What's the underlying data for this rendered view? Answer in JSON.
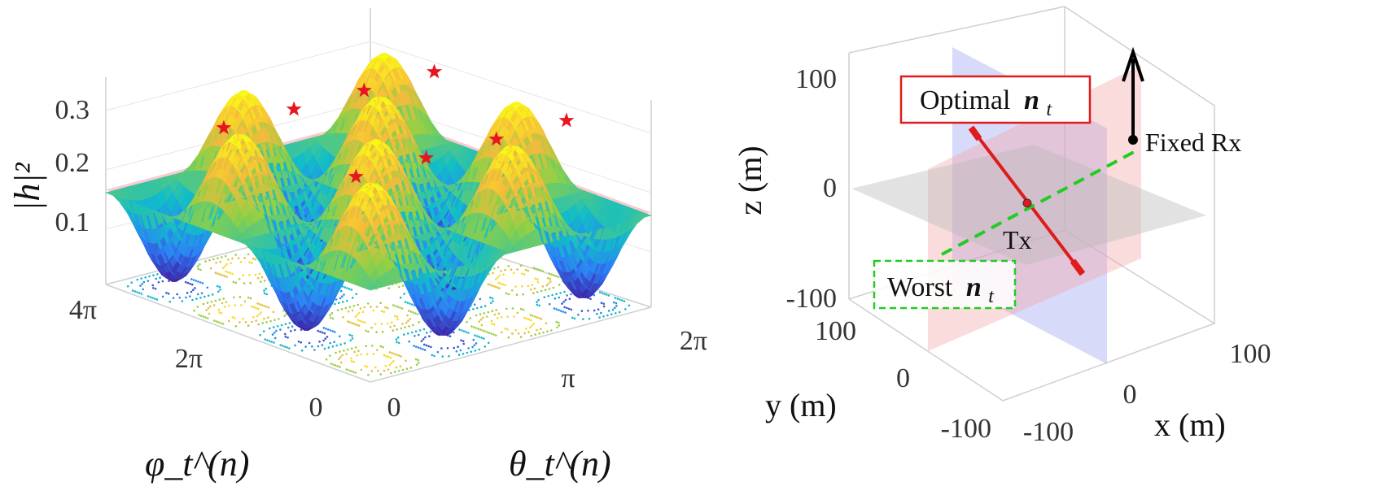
{
  "chart_data": [
    {
      "type": "surface",
      "zlabel": "|h|²",
      "xlabel": "θ_t^(n)",
      "ylabel": "φ_t^(n)",
      "x_ticks": [
        "0",
        "π",
        "2π"
      ],
      "y_ticks": [
        "0",
        "2π",
        "4π"
      ],
      "z_ticks": [
        "0.1",
        "0.2",
        "0.3"
      ],
      "xlim": [
        0,
        6.283
      ],
      "ylim": [
        0,
        12.566
      ],
      "zlim": [
        0,
        0.35
      ],
      "contour_projection": true,
      "threshold_plane_z": 0.16,
      "colormap": [
        "#3e26a8",
        "#2e7ef7",
        "#11bec7",
        "#8ed046",
        "#f6ba3c",
        "#f9fb15"
      ],
      "maxima": [
        {
          "theta": 0.79,
          "phi": 2.36,
          "value": 0.3
        },
        {
          "theta": 2.36,
          "phi": 2.36,
          "value": 0.3
        },
        {
          "theta": 3.93,
          "phi": 2.36,
          "value": 0.3
        },
        {
          "theta": 5.5,
          "phi": 2.36,
          "value": 0.3
        },
        {
          "theta": 0.79,
          "phi": 8.64,
          "value": 0.3
        },
        {
          "theta": 2.36,
          "phi": 8.64,
          "value": 0.3
        },
        {
          "theta": 3.93,
          "phi": 8.64,
          "value": 0.3
        },
        {
          "theta": 5.5,
          "phi": 8.64,
          "value": 0.3
        }
      ],
      "maxima_color": "#e8141e"
    },
    {
      "type": "3d-geometry",
      "xlabel": "x (m)",
      "ylabel": "y (m)",
      "zlabel": "z (m)",
      "x_ticks": [
        "-100",
        "0",
        "100"
      ],
      "y_ticks": [
        "-100",
        "0",
        "100"
      ],
      "z_ticks": [
        "-100",
        "0",
        "100"
      ],
      "xlim": [
        -150,
        150
      ],
      "ylim": [
        -150,
        150
      ],
      "zlim": [
        -120,
        120
      ],
      "tx_label": "Tx",
      "rx_label": "Fixed Rx",
      "optimal_label": "Optimal",
      "worst_label": "Worst",
      "vector_symbol": "n",
      "vector_subscript": "t",
      "optimal_color": "#e01b1b",
      "worst_color": "#22cc22",
      "plane_colors": {
        "xy": "#bbbbbb",
        "xz": "#f2a3a3",
        "yz": "#a9aef5"
      }
    }
  ]
}
